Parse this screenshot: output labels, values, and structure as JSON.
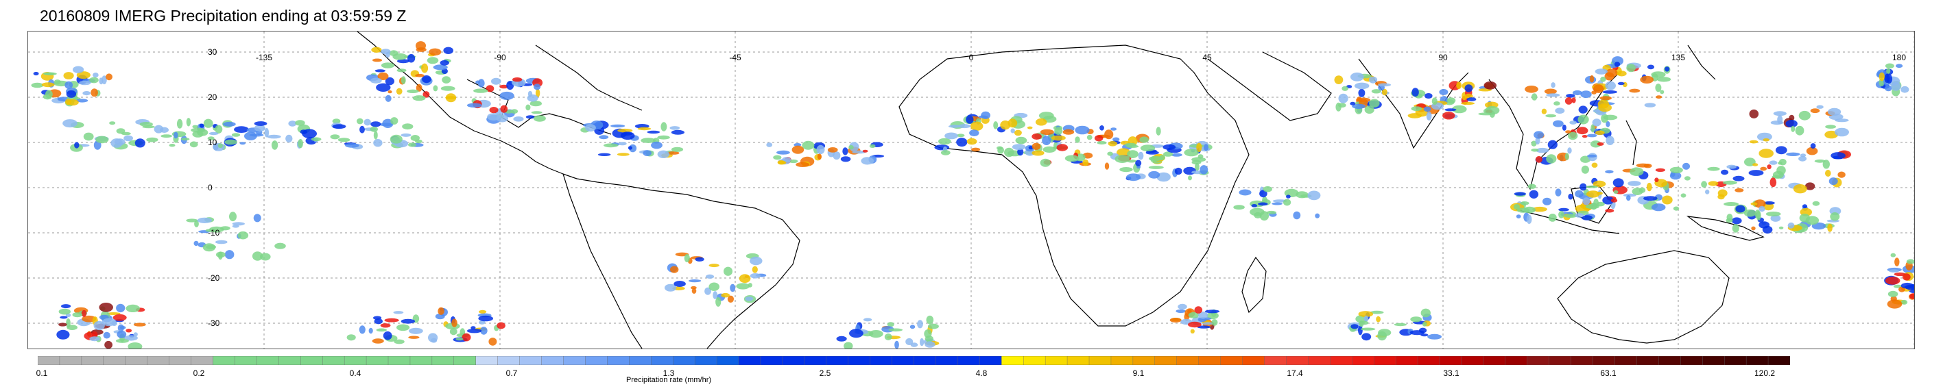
{
  "title": "20160809 IMERG Precipitation ending at 03:59:59 Z",
  "map": {
    "lon_ticks": [
      "-135",
      "-90",
      "-45",
      "0",
      "45",
      "90",
      "135",
      "180"
    ],
    "lat_ticks": [
      "30",
      "20",
      "10",
      "0",
      "-10",
      "-20",
      "-30"
    ],
    "grid": "dotted",
    "projection": "cylindrical equidistant, -180 to 180 E, -40 to 40 N"
  },
  "colorbar": {
    "label": "Precipitation rate (mm/hr)",
    "tick_labels": [
      "0.1",
      "0.2",
      "0.4",
      "0.7",
      "1.3",
      "2.5",
      "4.8",
      "9.1",
      "17.4",
      "33.1",
      "63.1",
      "120.2"
    ],
    "colors": [
      "#b3b3b3",
      "#b3b3b3",
      "#b3b3b3",
      "#b3b3b3",
      "#b3b3b3",
      "#b3b3b3",
      "#b3b3b3",
      "#b3b3b3",
      "#7fd68a",
      "#7fd68a",
      "#7fd68a",
      "#7fd68a",
      "#7fd68a",
      "#7fd68a",
      "#7fd68a",
      "#7fd68a",
      "#7fd68a",
      "#7fd68a",
      "#7fd68a",
      "#7fd68a",
      "#c6d8f5",
      "#b5cdf5",
      "#a4c2f5",
      "#93b7f5",
      "#82acf5",
      "#71a1f5",
      "#6096f3",
      "#4f8bf0",
      "#3e80ed",
      "#2d75ea",
      "#1c6ae7",
      "#0b5fe4",
      "#0030e8",
      "#0030e8",
      "#0030e8",
      "#0030e8",
      "#0030e8",
      "#0030e8",
      "#0030e8",
      "#0030e8",
      "#0030e8",
      "#0030e8",
      "#0030e8",
      "#0030e8",
      "#fff200",
      "#fbe600",
      "#f7da00",
      "#f4cd00",
      "#f0c100",
      "#f0b000",
      "#f0a000",
      "#f09000",
      "#f08000",
      "#f07000",
      "#f06000",
      "#f05000",
      "#ef4535",
      "#ef3a2c",
      "#ee2f23",
      "#ed241a",
      "#ec1a12",
      "#e3120c",
      "#d80b08",
      "#cc0605",
      "#bf0303",
      "#b20000",
      "#a60000",
      "#9a0000",
      "#8c1414",
      "#82100f",
      "#780d0b",
      "#6e0a08",
      "#650806",
      "#5c0604",
      "#540402",
      "#4c0301",
      "#450200",
      "#3f0100",
      "#3a0000",
      "#360000"
    ]
  }
}
